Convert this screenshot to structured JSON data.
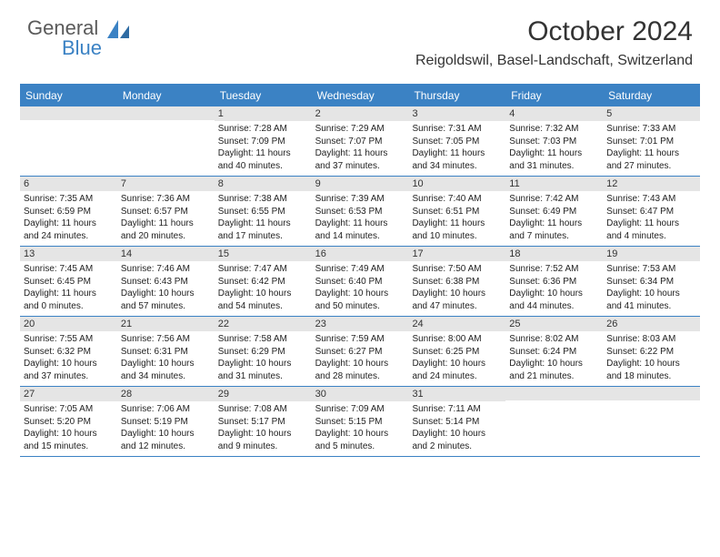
{
  "logo": {
    "part1": "General",
    "part2": "Blue",
    "color_gray": "#5a5a5a",
    "color_blue": "#3b82c4"
  },
  "title": "October 2024",
  "location": "Reigoldswil, Basel-Landschaft, Switzerland",
  "colors": {
    "header_bar": "#3b82c4",
    "day_num_bg": "#e5e5e5",
    "row_divider": "#3b82c4",
    "text": "#222222",
    "background": "#ffffff"
  },
  "typography": {
    "month_title_size_pt": 22,
    "location_size_pt": 12,
    "dow_size_pt": 9,
    "daynum_size_pt": 8,
    "body_size_pt": 7.5,
    "font_family": "Arial"
  },
  "layout": {
    "columns": 7,
    "rows": 5,
    "aspect_w": 792,
    "aspect_h": 612
  },
  "dow": [
    "Sunday",
    "Monday",
    "Tuesday",
    "Wednesday",
    "Thursday",
    "Friday",
    "Saturday"
  ],
  "weeks": [
    [
      {
        "day": "",
        "lines": []
      },
      {
        "day": "",
        "lines": []
      },
      {
        "day": "1",
        "lines": [
          "Sunrise: 7:28 AM",
          "Sunset: 7:09 PM",
          "Daylight: 11 hours and 40 minutes."
        ]
      },
      {
        "day": "2",
        "lines": [
          "Sunrise: 7:29 AM",
          "Sunset: 7:07 PM",
          "Daylight: 11 hours and 37 minutes."
        ]
      },
      {
        "day": "3",
        "lines": [
          "Sunrise: 7:31 AM",
          "Sunset: 7:05 PM",
          "Daylight: 11 hours and 34 minutes."
        ]
      },
      {
        "day": "4",
        "lines": [
          "Sunrise: 7:32 AM",
          "Sunset: 7:03 PM",
          "Daylight: 11 hours and 31 minutes."
        ]
      },
      {
        "day": "5",
        "lines": [
          "Sunrise: 7:33 AM",
          "Sunset: 7:01 PM",
          "Daylight: 11 hours and 27 minutes."
        ]
      }
    ],
    [
      {
        "day": "6",
        "lines": [
          "Sunrise: 7:35 AM",
          "Sunset: 6:59 PM",
          "Daylight: 11 hours and 24 minutes."
        ]
      },
      {
        "day": "7",
        "lines": [
          "Sunrise: 7:36 AM",
          "Sunset: 6:57 PM",
          "Daylight: 11 hours and 20 minutes."
        ]
      },
      {
        "day": "8",
        "lines": [
          "Sunrise: 7:38 AM",
          "Sunset: 6:55 PM",
          "Daylight: 11 hours and 17 minutes."
        ]
      },
      {
        "day": "9",
        "lines": [
          "Sunrise: 7:39 AM",
          "Sunset: 6:53 PM",
          "Daylight: 11 hours and 14 minutes."
        ]
      },
      {
        "day": "10",
        "lines": [
          "Sunrise: 7:40 AM",
          "Sunset: 6:51 PM",
          "Daylight: 11 hours and 10 minutes."
        ]
      },
      {
        "day": "11",
        "lines": [
          "Sunrise: 7:42 AM",
          "Sunset: 6:49 PM",
          "Daylight: 11 hours and 7 minutes."
        ]
      },
      {
        "day": "12",
        "lines": [
          "Sunrise: 7:43 AM",
          "Sunset: 6:47 PM",
          "Daylight: 11 hours and 4 minutes."
        ]
      }
    ],
    [
      {
        "day": "13",
        "lines": [
          "Sunrise: 7:45 AM",
          "Sunset: 6:45 PM",
          "Daylight: 11 hours and 0 minutes."
        ]
      },
      {
        "day": "14",
        "lines": [
          "Sunrise: 7:46 AM",
          "Sunset: 6:43 PM",
          "Daylight: 10 hours and 57 minutes."
        ]
      },
      {
        "day": "15",
        "lines": [
          "Sunrise: 7:47 AM",
          "Sunset: 6:42 PM",
          "Daylight: 10 hours and 54 minutes."
        ]
      },
      {
        "day": "16",
        "lines": [
          "Sunrise: 7:49 AM",
          "Sunset: 6:40 PM",
          "Daylight: 10 hours and 50 minutes."
        ]
      },
      {
        "day": "17",
        "lines": [
          "Sunrise: 7:50 AM",
          "Sunset: 6:38 PM",
          "Daylight: 10 hours and 47 minutes."
        ]
      },
      {
        "day": "18",
        "lines": [
          "Sunrise: 7:52 AM",
          "Sunset: 6:36 PM",
          "Daylight: 10 hours and 44 minutes."
        ]
      },
      {
        "day": "19",
        "lines": [
          "Sunrise: 7:53 AM",
          "Sunset: 6:34 PM",
          "Daylight: 10 hours and 41 minutes."
        ]
      }
    ],
    [
      {
        "day": "20",
        "lines": [
          "Sunrise: 7:55 AM",
          "Sunset: 6:32 PM",
          "Daylight: 10 hours and 37 minutes."
        ]
      },
      {
        "day": "21",
        "lines": [
          "Sunrise: 7:56 AM",
          "Sunset: 6:31 PM",
          "Daylight: 10 hours and 34 minutes."
        ]
      },
      {
        "day": "22",
        "lines": [
          "Sunrise: 7:58 AM",
          "Sunset: 6:29 PM",
          "Daylight: 10 hours and 31 minutes."
        ]
      },
      {
        "day": "23",
        "lines": [
          "Sunrise: 7:59 AM",
          "Sunset: 6:27 PM",
          "Daylight: 10 hours and 28 minutes."
        ]
      },
      {
        "day": "24",
        "lines": [
          "Sunrise: 8:00 AM",
          "Sunset: 6:25 PM",
          "Daylight: 10 hours and 24 minutes."
        ]
      },
      {
        "day": "25",
        "lines": [
          "Sunrise: 8:02 AM",
          "Sunset: 6:24 PM",
          "Daylight: 10 hours and 21 minutes."
        ]
      },
      {
        "day": "26",
        "lines": [
          "Sunrise: 8:03 AM",
          "Sunset: 6:22 PM",
          "Daylight: 10 hours and 18 minutes."
        ]
      }
    ],
    [
      {
        "day": "27",
        "lines": [
          "Sunrise: 7:05 AM",
          "Sunset: 5:20 PM",
          "Daylight: 10 hours and 15 minutes."
        ]
      },
      {
        "day": "28",
        "lines": [
          "Sunrise: 7:06 AM",
          "Sunset: 5:19 PM",
          "Daylight: 10 hours and 12 minutes."
        ]
      },
      {
        "day": "29",
        "lines": [
          "Sunrise: 7:08 AM",
          "Sunset: 5:17 PM",
          "Daylight: 10 hours and 9 minutes."
        ]
      },
      {
        "day": "30",
        "lines": [
          "Sunrise: 7:09 AM",
          "Sunset: 5:15 PM",
          "Daylight: 10 hours and 5 minutes."
        ]
      },
      {
        "day": "31",
        "lines": [
          "Sunrise: 7:11 AM",
          "Sunset: 5:14 PM",
          "Daylight: 10 hours and 2 minutes."
        ]
      },
      {
        "day": "",
        "lines": []
      },
      {
        "day": "",
        "lines": []
      }
    ]
  ]
}
